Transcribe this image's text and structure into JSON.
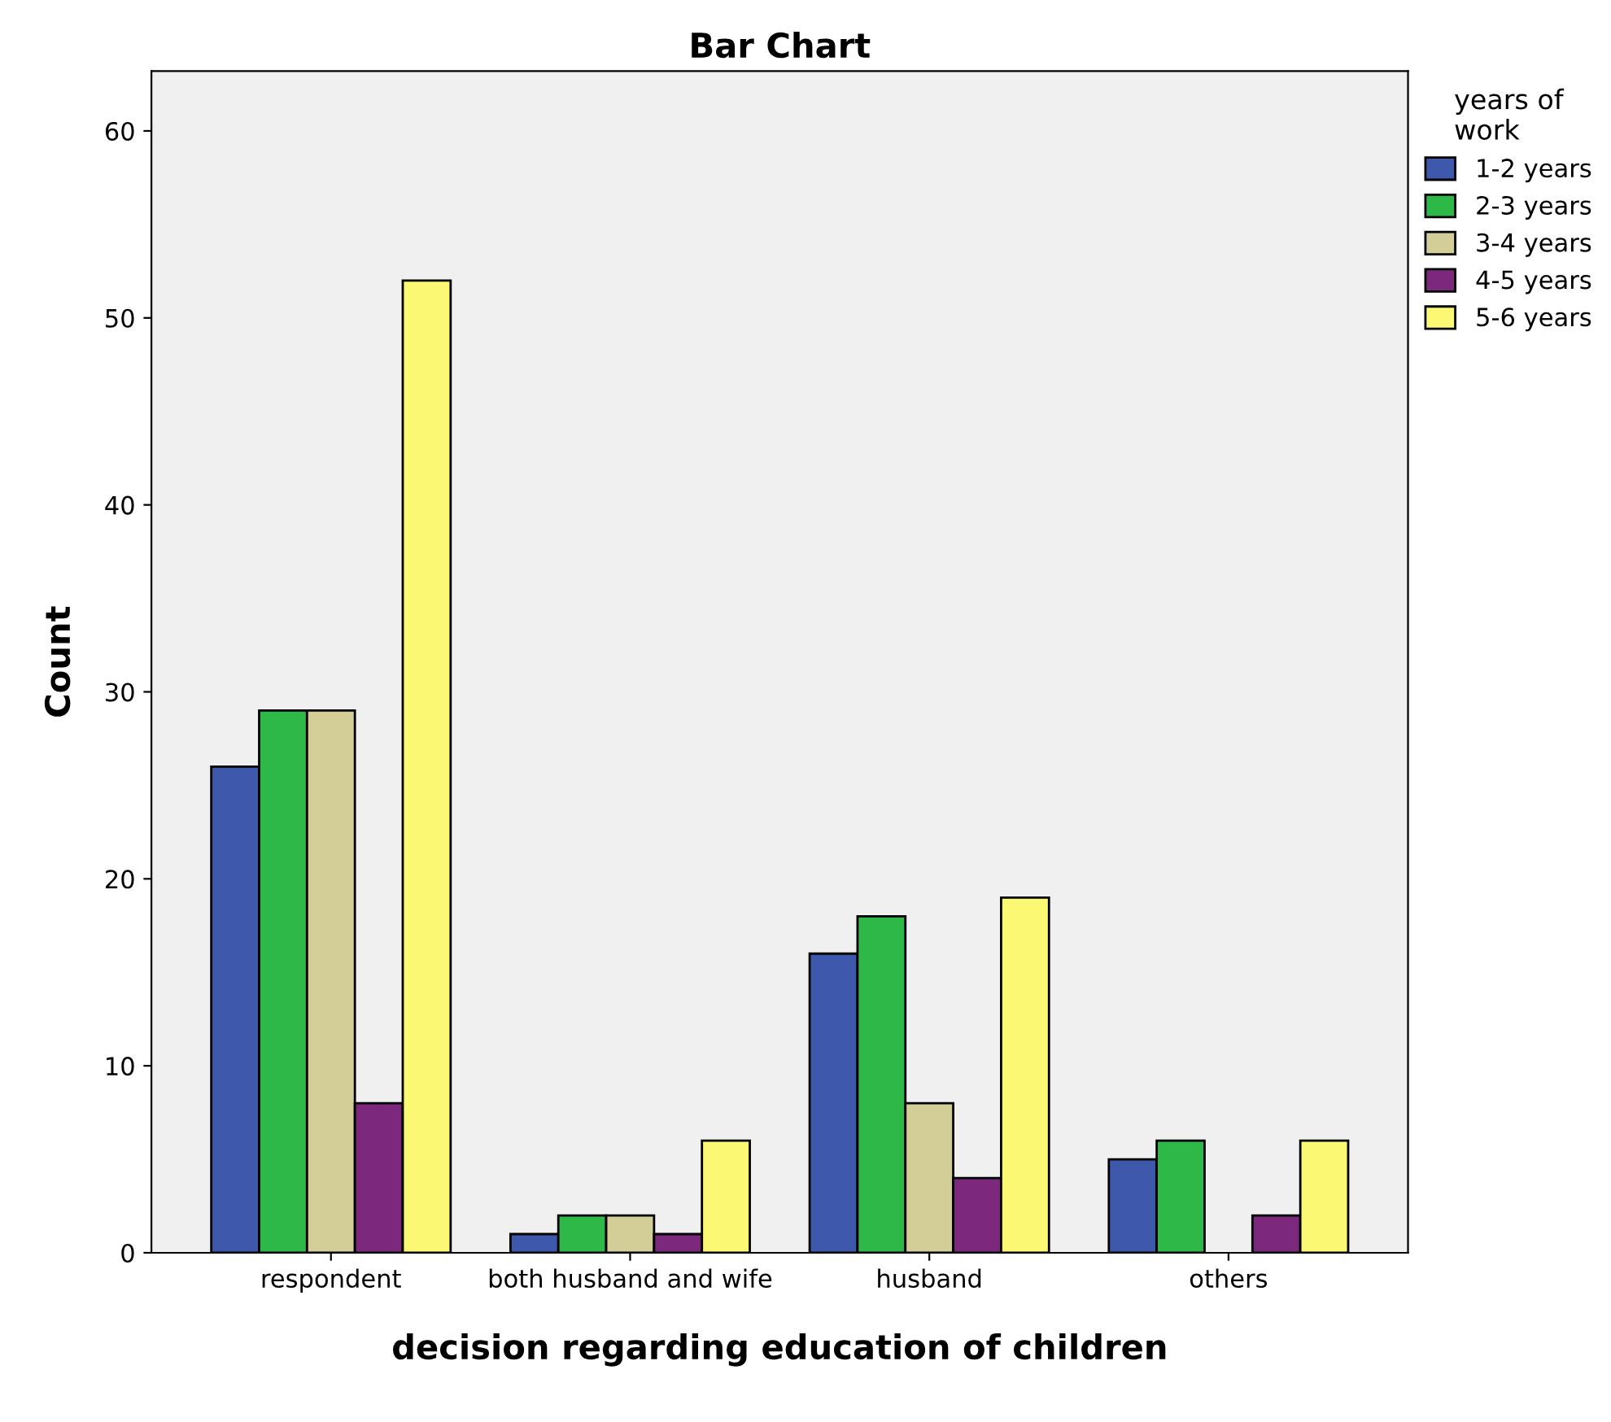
{
  "chart_data": {
    "type": "bar",
    "title": "Bar Chart",
    "xlabel": "decision regarding education of children",
    "ylabel": "Count",
    "legend_title": "years of\nwork",
    "categories": [
      "respondent",
      "both husband and wife",
      "husband",
      "others"
    ],
    "series": [
      {
        "name": "1-2 years",
        "color": "#3e58ac",
        "values": [
          26,
          1,
          16,
          5
        ]
      },
      {
        "name": "2-3 years",
        "color": "#2eb848",
        "values": [
          29,
          2,
          18,
          6
        ]
      },
      {
        "name": "3-4 years",
        "color": "#d3ce97",
        "values": [
          29,
          2,
          8,
          null
        ]
      },
      {
        "name": "4-5 years",
        "color": "#7c287d",
        "values": [
          8,
          1,
          4,
          2
        ]
      },
      {
        "name": "5-6 years",
        "color": "#fbf873",
        "values": [
          52,
          6,
          19,
          6
        ]
      }
    ],
    "ylim": [
      0,
      63.2
    ],
    "yticks": [
      0,
      10,
      20,
      30,
      40,
      50,
      60
    ],
    "grid": false,
    "legend": "right"
  }
}
